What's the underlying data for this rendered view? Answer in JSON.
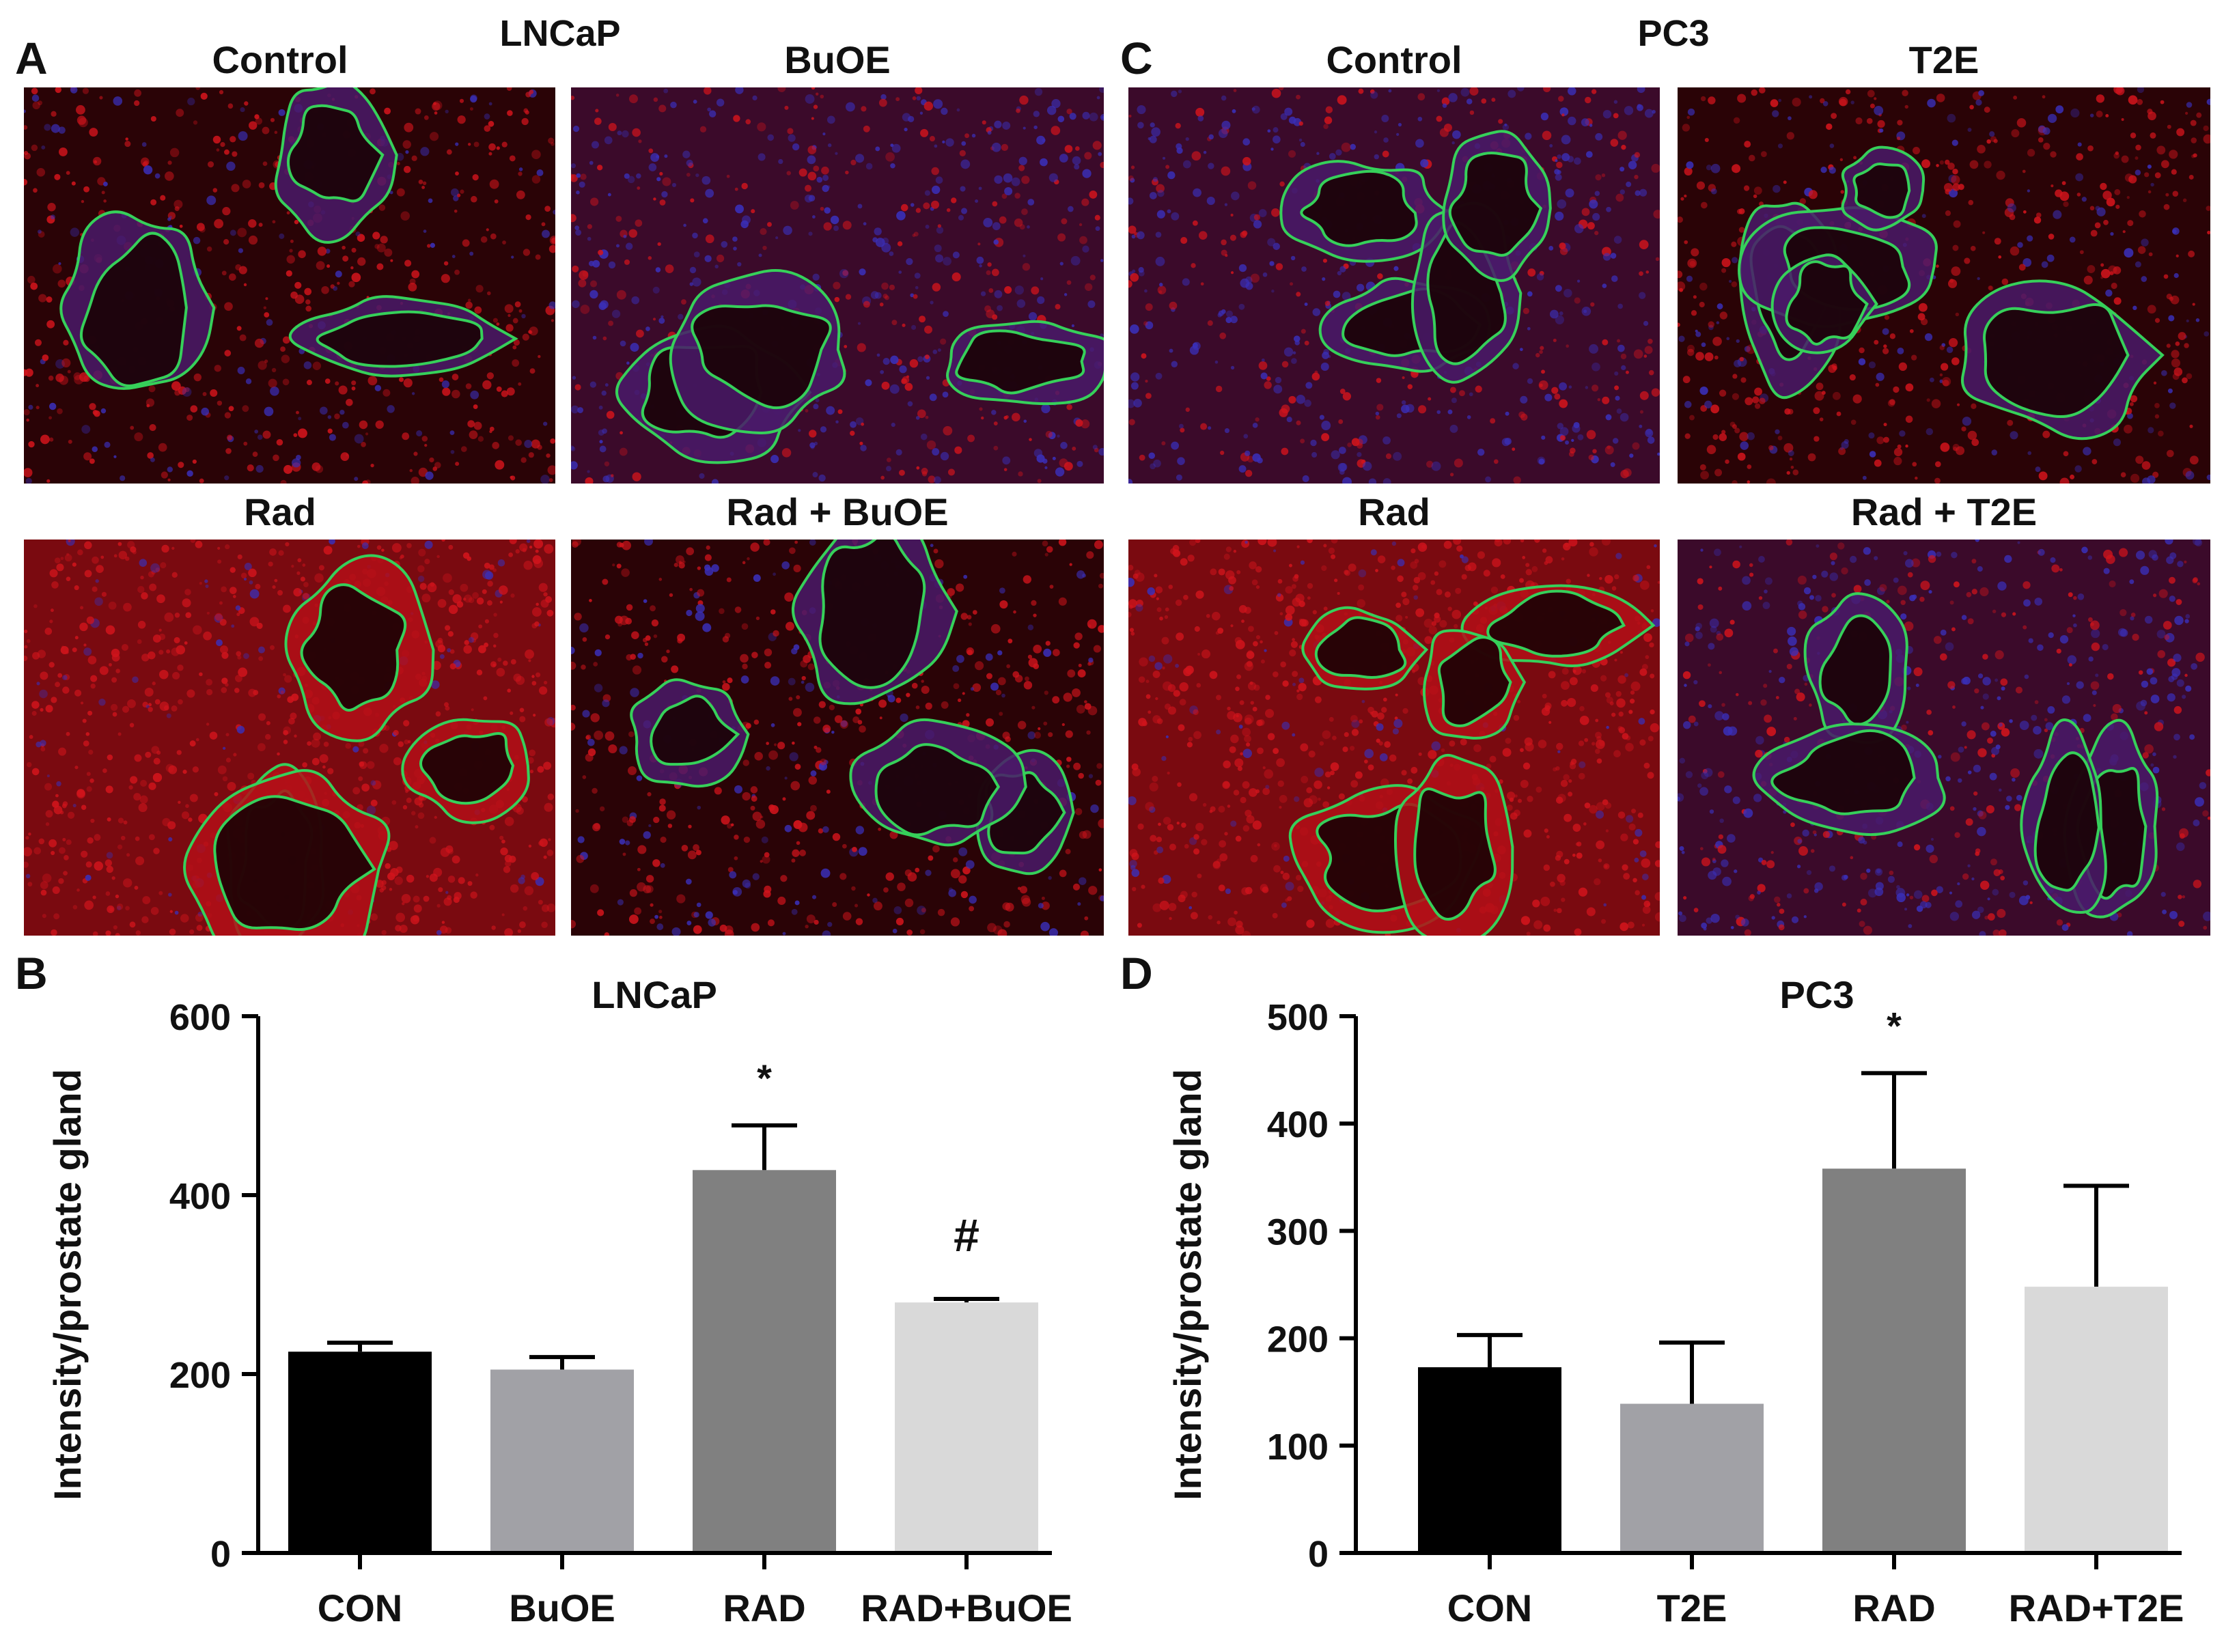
{
  "panels": {
    "A": {
      "letter": "A",
      "title": "LNCaP",
      "images": [
        {
          "label": "Control",
          "style": "dark"
        },
        {
          "label": "BuOE",
          "style": "blue"
        },
        {
          "label": "Rad",
          "style": "red"
        },
        {
          "label": "Rad + BuOE",
          "style": "dark"
        }
      ]
    },
    "C": {
      "letter": "C",
      "title": "PC3",
      "images": [
        {
          "label": "Control",
          "style": "blue"
        },
        {
          "label": "T2E",
          "style": "dark"
        },
        {
          "label": "Rad",
          "style": "red"
        },
        {
          "label": "Rad + T2E",
          "style": "blue"
        }
      ]
    },
    "B": {
      "letter": "B"
    },
    "D": {
      "letter": "D"
    }
  },
  "colors": {
    "tissue_red": "#d0141c",
    "nucleus_blue": "#3a2fb8",
    "outline_green": "#36d05a",
    "background_dark": "#2a0306",
    "bar_black": "#000000",
    "bar_gray": "#a1a1a6",
    "bar_dark_gray": "#808080",
    "bar_light_gray": "#d9d9d9"
  },
  "chart_data": [
    {
      "type": "bar",
      "panel": "B",
      "title": "LNCaP",
      "ylabel": "Intensity/prostate gland",
      "xlabel": "",
      "ylim": [
        0,
        600
      ],
      "yticks": [
        0,
        200,
        400,
        600
      ],
      "categories": [
        "CON",
        "BuOE",
        "RAD",
        "RAD+BuOE"
      ],
      "values": [
        225,
        205,
        428,
        280
      ],
      "errors": [
        10,
        14,
        50,
        4
      ],
      "bar_colors": [
        "#000000",
        "#a1a1a6",
        "#808080",
        "#d9d9d9"
      ],
      "annotations": [
        {
          "category": "RAD",
          "text": "*"
        },
        {
          "category": "RAD+BuOE",
          "text": "#"
        }
      ]
    },
    {
      "type": "bar",
      "panel": "D",
      "title": "PC3",
      "ylabel": "Intensity/prostate gland",
      "xlabel": "",
      "ylim": [
        0,
        500
      ],
      "yticks": [
        0,
        100,
        200,
        300,
        400,
        500
      ],
      "categories": [
        "CON",
        "T2E",
        "RAD",
        "RAD+T2E"
      ],
      "values": [
        173,
        139,
        358,
        248
      ],
      "errors": [
        30,
        57,
        89,
        94
      ],
      "bar_colors": [
        "#000000",
        "#a1a1a6",
        "#808080",
        "#d9d9d9"
      ],
      "annotations": [
        {
          "category": "RAD",
          "text": "*"
        }
      ]
    }
  ]
}
